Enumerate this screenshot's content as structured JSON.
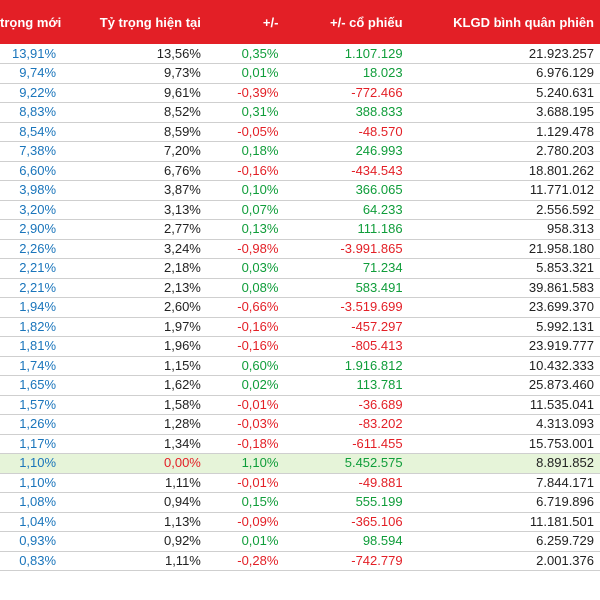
{
  "header": {
    "col1": "trọng mới",
    "col2": "Tỷ trọng hiện tại",
    "col3": "+/-",
    "col4": "+/- cổ phiếu",
    "col5": "KLGD bình quân phiên"
  },
  "rows": [
    {
      "new": "13,91%",
      "cur": "13,56%",
      "chg": "0,35%",
      "shares": "1.107.129",
      "avg": "21.923.257",
      "dir": "up"
    },
    {
      "new": "9,74%",
      "cur": "9,73%",
      "chg": "0,01%",
      "shares": "18.023",
      "avg": "6.976.129",
      "dir": "up"
    },
    {
      "new": "9,22%",
      "cur": "9,61%",
      "chg": "-0,39%",
      "shares": "-772.466",
      "avg": "5.240.631",
      "dir": "down"
    },
    {
      "new": "8,83%",
      "cur": "8,52%",
      "chg": "0,31%",
      "shares": "388.833",
      "avg": "3.688.195",
      "dir": "up"
    },
    {
      "new": "8,54%",
      "cur": "8,59%",
      "chg": "-0,05%",
      "shares": "-48.570",
      "avg": "1.129.478",
      "dir": "down"
    },
    {
      "new": "7,38%",
      "cur": "7,20%",
      "chg": "0,18%",
      "shares": "246.993",
      "avg": "2.780.203",
      "dir": "up"
    },
    {
      "new": "6,60%",
      "cur": "6,76%",
      "chg": "-0,16%",
      "shares": "-434.543",
      "avg": "18.801.262",
      "dir": "down"
    },
    {
      "new": "3,98%",
      "cur": "3,87%",
      "chg": "0,10%",
      "shares": "366.065",
      "avg": "11.771.012",
      "dir": "up"
    },
    {
      "new": "3,20%",
      "cur": "3,13%",
      "chg": "0,07%",
      "shares": "64.233",
      "avg": "2.556.592",
      "dir": "up"
    },
    {
      "new": "2,90%",
      "cur": "2,77%",
      "chg": "0,13%",
      "shares": "111.186",
      "avg": "958.313",
      "dir": "up"
    },
    {
      "new": "2,26%",
      "cur": "3,24%",
      "chg": "-0,98%",
      "shares": "-3.991.865",
      "avg": "21.958.180",
      "dir": "down"
    },
    {
      "new": "2,21%",
      "cur": "2,18%",
      "chg": "0,03%",
      "shares": "71.234",
      "avg": "5.853.321",
      "dir": "up"
    },
    {
      "new": "2,21%",
      "cur": "2,13%",
      "chg": "0,08%",
      "shares": "583.491",
      "avg": "39.861.583",
      "dir": "up"
    },
    {
      "new": "1,94%",
      "cur": "2,60%",
      "chg": "-0,66%",
      "shares": "-3.519.699",
      "avg": "23.699.370",
      "dir": "down"
    },
    {
      "new": "1,82%",
      "cur": "1,97%",
      "chg": "-0,16%",
      "shares": "-457.297",
      "avg": "5.992.131",
      "dir": "down"
    },
    {
      "new": "1,81%",
      "cur": "1,96%",
      "chg": "-0,16%",
      "shares": "-805.413",
      "avg": "23.919.777",
      "dir": "down"
    },
    {
      "new": "1,74%",
      "cur": "1,15%",
      "chg": "0,60%",
      "shares": "1.916.812",
      "avg": "10.432.333",
      "dir": "up"
    },
    {
      "new": "1,65%",
      "cur": "1,62%",
      "chg": "0,02%",
      "shares": "113.781",
      "avg": "25.873.460",
      "dir": "up"
    },
    {
      "new": "1,57%",
      "cur": "1,58%",
      "chg": "-0,01%",
      "shares": "-36.689",
      "avg": "11.535.041",
      "dir": "down"
    },
    {
      "new": "1,26%",
      "cur": "1,28%",
      "chg": "-0,03%",
      "shares": "-83.202",
      "avg": "4.313.093",
      "dir": "down"
    },
    {
      "new": "1,17%",
      "cur": "1,34%",
      "chg": "-0,18%",
      "shares": "-611.455",
      "avg": "15.753.001",
      "dir": "down"
    },
    {
      "new": "1,10%",
      "cur": "0,00%",
      "chg": "1,10%",
      "shares": "5.452.575",
      "avg": "8.891.852",
      "dir": "up",
      "highlight": true
    },
    {
      "new": "1,10%",
      "cur": "1,11%",
      "chg": "-0,01%",
      "shares": "-49.881",
      "avg": "7.844.171",
      "dir": "down"
    },
    {
      "new": "1,08%",
      "cur": "0,94%",
      "chg": "0,15%",
      "shares": "555.199",
      "avg": "6.719.896",
      "dir": "up"
    },
    {
      "new": "1,04%",
      "cur": "1,13%",
      "chg": "-0,09%",
      "shares": "-365.106",
      "avg": "11.181.501",
      "dir": "down"
    },
    {
      "new": "0,93%",
      "cur": "0,92%",
      "chg": "0,01%",
      "shares": "98.594",
      "avg": "6.259.729",
      "dir": "up"
    },
    {
      "new": "0,83%",
      "cur": "1,11%",
      "chg": "-0,28%",
      "shares": "-742.779",
      "avg": "2.001.376",
      "dir": "down"
    }
  ],
  "colors": {
    "header_bg": "#e31f26",
    "up": "#0f9d3a",
    "down": "#e31f26",
    "new_weight": "#1a75bb",
    "highlight_row": "#e6f4d9"
  }
}
